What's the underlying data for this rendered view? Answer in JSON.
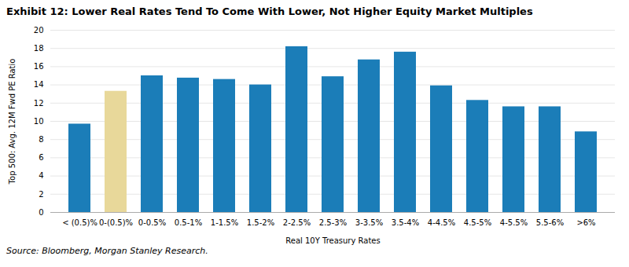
{
  "chart_data": {
    "type": "bar",
    "title": "Exhibit 12: Lower Real Rates Tend To Come With Lower, Not Higher Equity Market Multiples",
    "caption": "Source: Bloomberg, Morgan Stanley Research.",
    "xlabel": "Real 10Y Treasury Rates",
    "ylabel": "Top 500: Avg. 12M Fwd PE Ratio",
    "categories": [
      "< (0.5)%",
      "0-(0.5)%",
      "0-0.5%",
      "0.5-1%",
      "1-1.5%",
      "1.5-2%",
      "2-2.5%",
      "2.5-3%",
      "3-3.5%",
      "3.5-4%",
      "4-4.5%",
      "4.5-5%",
      "4-5.5%",
      "5.5-6%",
      ">6%"
    ],
    "values": [
      9.7,
      13.3,
      15.0,
      14.75,
      14.6,
      14.0,
      18.2,
      14.9,
      16.75,
      17.6,
      13.9,
      12.3,
      11.6,
      11.6,
      8.85
    ],
    "colors": [
      "#1b7db8",
      "#e8d89a",
      "#1b7db8",
      "#1b7db8",
      "#1b7db8",
      "#1b7db8",
      "#1b7db8",
      "#1b7db8",
      "#1b7db8",
      "#1b7db8",
      "#1b7db8",
      "#1b7db8",
      "#1b7db8",
      "#1b7db8",
      "#1b7db8"
    ],
    "ylim": [
      0,
      20
    ],
    "yticks": [
      0,
      2,
      4,
      6,
      8,
      10,
      12,
      14,
      16,
      18,
      20
    ],
    "grid": true
  }
}
